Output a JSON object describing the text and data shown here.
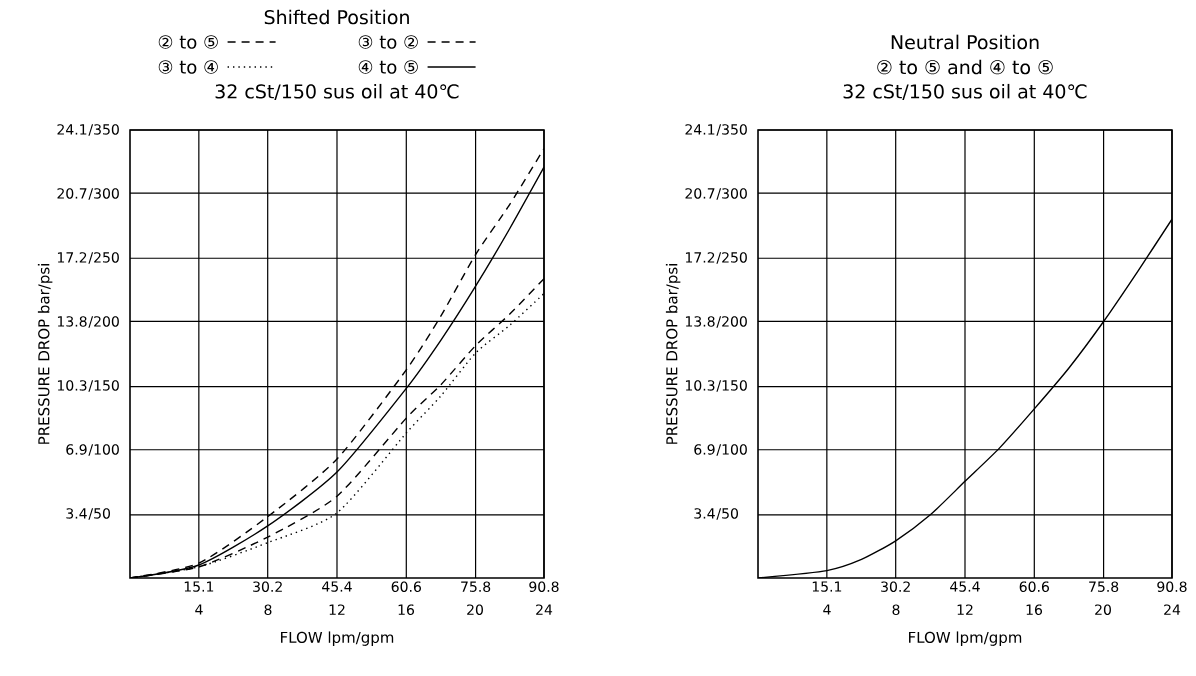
{
  "chart_data": [
    {
      "type": "line",
      "title": "Shifted Position",
      "subtitle": "32 cSt/150 sus oil at 40℃",
      "xlabel": "FLOW lpm/gpm",
      "ylabel": "PRESSURE DROP bar/psi",
      "x": [
        0,
        15.1,
        30.2,
        45.4,
        60.6,
        68.2,
        75.8,
        83.3,
        90.8
      ],
      "series": [
        {
          "name": "② to ⑤",
          "color": "#000000",
          "line_style": "dashed",
          "values": [
            0,
            0.6,
            2.2,
            4.4,
            8.6,
            10.4,
            12.5,
            14.2,
            16.1
          ]
        },
        {
          "name": "③ to ②",
          "color": "#000000",
          "line_style": "dashed",
          "values": [
            0,
            0.8,
            3.3,
            6.4,
            11.2,
            14.1,
            17.4,
            20.1,
            23.1
          ]
        },
        {
          "name": "③ to ④",
          "color": "#000000",
          "line_style": "dotted",
          "values": [
            0,
            0.6,
            1.9,
            3.5,
            7.8,
            9.8,
            12.1,
            13.6,
            15.3
          ]
        },
        {
          "name": "④ to ⑤",
          "color": "#000000",
          "line_style": "solid",
          "values": [
            0,
            0.7,
            2.8,
            5.7,
            10.2,
            12.8,
            15.7,
            18.8,
            22.1
          ]
        }
      ],
      "xlim": [
        0,
        90.8
      ],
      "xticks": [
        15.1,
        30.2,
        45.4,
        60.6,
        75.8,
        90.8
      ],
      "x2lim": [
        0,
        24
      ],
      "x2ticks": [
        4,
        8,
        12,
        16,
        20,
        24
      ],
      "ylim": [
        0,
        24.1
      ],
      "yticks": [
        3.4,
        6.9,
        10.3,
        13.8,
        17.2,
        20.7,
        24.1
      ],
      "y2lim": [
        0,
        350
      ],
      "y2ticks": [
        {
          "value": 50,
          "label": "/50"
        },
        {
          "value": 100,
          "label": "/100"
        },
        {
          "value": 150,
          "label": "/150"
        },
        {
          "value": 200,
          "label": "/200"
        },
        {
          "value": 250,
          "label": "/250"
        },
        {
          "value": 300,
          "label": "/300"
        },
        {
          "value": 350,
          "label": "/350"
        }
      ],
      "grid": true,
      "legend": "top"
    },
    {
      "type": "line",
      "title": "Neutral Position",
      "subtitle": "32 cSt/150 sus oil at 40℃",
      "annotations": [
        "② to ⑤ and ④ to ⑤"
      ],
      "xlabel": "FLOW lpm/gpm",
      "ylabel": "PRESSURE DROP bar/psi",
      "x": [
        0,
        15.1,
        22.7,
        30.2,
        37.8,
        45.4,
        53,
        60.6,
        68.2,
        75.8,
        83.3,
        90.8
      ],
      "series": [
        {
          "color": "#000000",
          "line_style": "solid",
          "values": [
            0,
            0.4,
            1.0,
            2.0,
            3.4,
            5.2,
            7.0,
            9.1,
            11.3,
            13.8,
            16.5,
            19.3
          ]
        }
      ],
      "xlim": [
        0,
        90.8
      ],
      "xticks": [
        15.1,
        30.2,
        45.4,
        60.6,
        75.8,
        90.8
      ],
      "x2lim": [
        0,
        24
      ],
      "x2ticks": [
        4,
        8,
        12,
        16,
        20,
        24
      ],
      "ylim": [
        0,
        24.1
      ],
      "yticks": [
        3.4,
        6.9,
        10.3,
        13.8,
        17.2,
        20.7,
        24.1
      ],
      "y2lim": [
        0,
        350
      ],
      "y2ticks": [
        {
          "value": 50,
          "label": "/50"
        },
        {
          "value": 100,
          "label": "/100"
        },
        {
          "value": 150,
          "label": "/150"
        },
        {
          "value": 200,
          "label": "/200"
        },
        {
          "value": 250,
          "label": "/250"
        },
        {
          "value": 300,
          "label": "/300"
        },
        {
          "value": 350,
          "label": "/350"
        }
      ],
      "grid": true
    }
  ]
}
